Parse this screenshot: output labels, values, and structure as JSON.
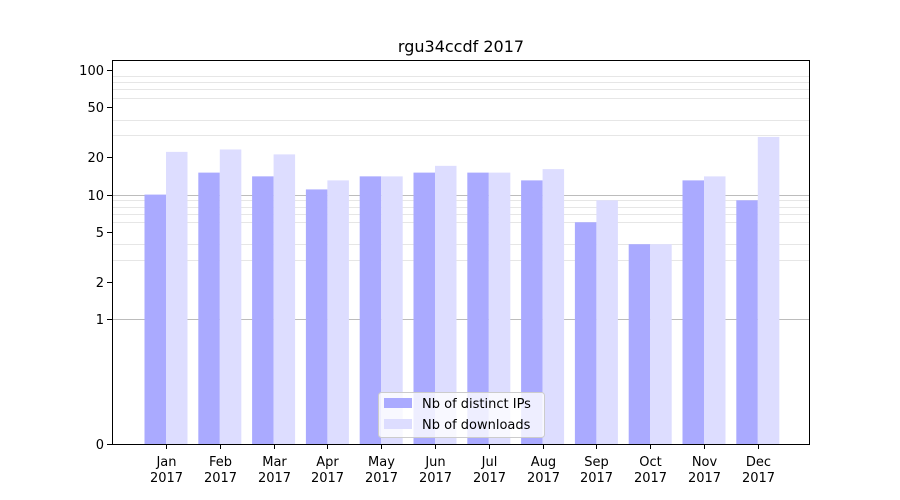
{
  "chart_data": {
    "type": "bar",
    "title": "rgu34ccdf 2017",
    "xlabel": "",
    "ylabel": "",
    "categories": [
      "Jan\n2017",
      "Feb\n2017",
      "Mar\n2017",
      "Apr\n2017",
      "May\n2017",
      "Jun\n2017",
      "Jul\n2017",
      "Aug\n2017",
      "Sep\n2017",
      "Oct\n2017",
      "Nov\n2017",
      "Dec\n2017"
    ],
    "series": [
      {
        "name": "Nb of distinct IPs",
        "color": "#aaaaff",
        "values": [
          10,
          15,
          14,
          11,
          14,
          15,
          15,
          13,
          6,
          4,
          13,
          9
        ]
      },
      {
        "name": "Nb of downloads",
        "color": "#ddddff",
        "values": [
          22,
          23,
          21,
          13,
          14,
          17,
          15,
          16,
          9,
          4,
          14,
          29
        ]
      }
    ],
    "yscale": "symlog",
    "ylim": [
      0,
      120
    ],
    "yticks": [
      0,
      1,
      2,
      5,
      10,
      20,
      50,
      100
    ],
    "grid": true,
    "legend": "bottom-center"
  }
}
